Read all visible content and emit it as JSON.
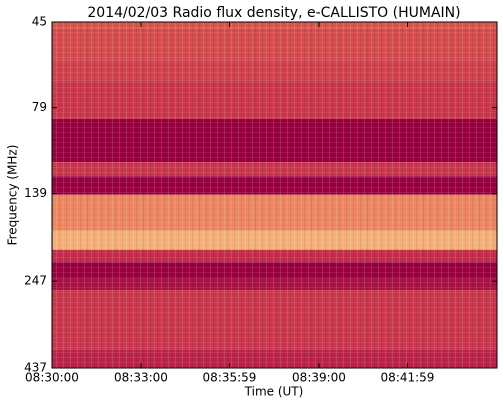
{
  "chart_data": {
    "type": "spectrogram",
    "title": "2014/02/03  Radio flux density, e-CALLISTO (HUMAIN)",
    "xlabel": "Time (UT)",
    "ylabel": "Frequency (MHz)",
    "xlim": [
      0,
      900
    ],
    "xticks": [
      {
        "value": 0,
        "label": "08:30:00"
      },
      {
        "value": 180,
        "label": "08:33:00"
      },
      {
        "value": 359,
        "label": "08:35:59"
      },
      {
        "value": 540,
        "label": "08:39:00"
      },
      {
        "value": 719,
        "label": "08:41:59"
      }
    ],
    "ylim": [
      45,
      437
    ],
    "ylog": true,
    "yinvert": true,
    "yticks": [
      45,
      79,
      139,
      247,
      437
    ],
    "frequency_bins": [
      45,
      47,
      58,
      66,
      85,
      113,
      124,
      140,
      177,
      201,
      218,
      242,
      262,
      388,
      437
    ],
    "intensity": [
      0.45,
      0.4,
      0.35,
      0.3,
      0.0,
      0.3,
      0.0,
      0.65,
      0.8,
      0.25,
      0.0,
      0.1,
      0.3,
      0.2
    ],
    "colormap": [
      "#990040",
      "#c42c4a",
      "#e0604e",
      "#f2a06c",
      "#fde9a4"
    ]
  }
}
